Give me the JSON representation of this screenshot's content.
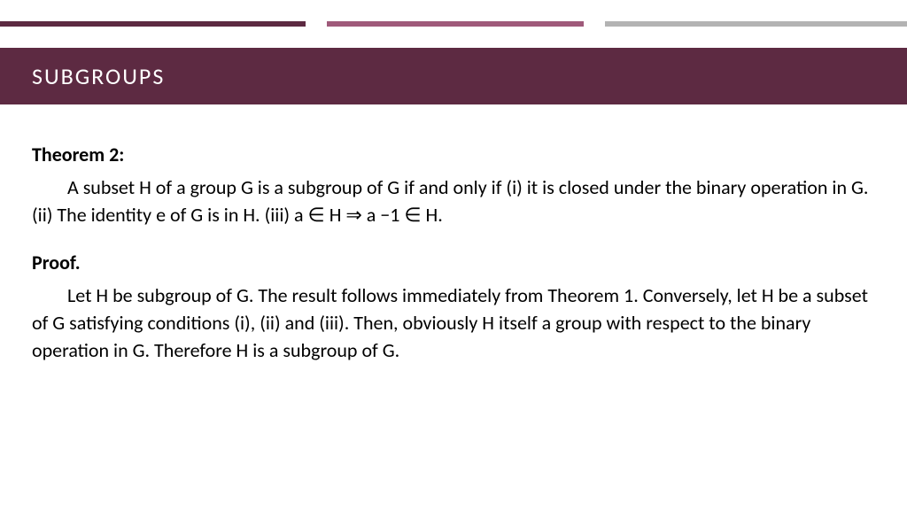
{
  "title": "SUBGROUPS",
  "colors": {
    "title_bar_bg": "#5d2a42",
    "accent_dark": "#5d2a42",
    "accent_mid": "#9f5a7a",
    "accent_light": "#b3b3b3",
    "text": "#000000",
    "title_text": "#ffffff",
    "background": "#ffffff"
  },
  "accent": {
    "seg1_width": 345,
    "gap1_width": 24,
    "seg2_width": 290,
    "gap2_width": 24,
    "seg3_width": 341,
    "height": 6
  },
  "typography": {
    "title_fontsize": 26,
    "title_letter_spacing": 2,
    "body_fontsize": 22,
    "line_height": 1.4
  },
  "theorem": {
    "label": "Theorem 2:",
    "body_html": "<span style='margin-left:40px'></span>A subset H of a group G is a subgroup of G if and only if (i) it is closed under the binary operation in G. (ii) The identity e of G is in H. (iii) a ∈ H ⇒ a −1 ∈ H."
  },
  "proof": {
    "label": "Proof.",
    "body_html": "<span style='margin-left:40px'></span>Let H be subgroup of G. The result follows immediately from Theorem 1. Conversely, let H be a subset of G satisfying conditions (i), (ii) and (iii). Then, obviously H itself a group with respect to the binary operation in G. Therefore H is a subgroup of G."
  }
}
